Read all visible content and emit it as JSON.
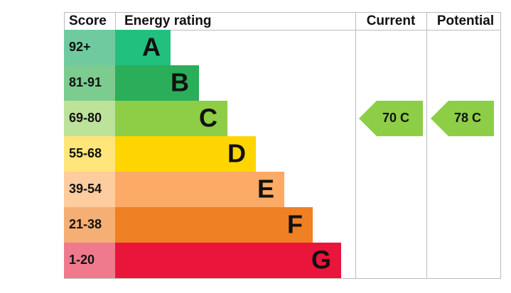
{
  "header": {
    "score": "Score",
    "rating": "Energy rating",
    "current": "Current",
    "potential": "Potential"
  },
  "bands": [
    {
      "score": "92+",
      "letter": "A"
    },
    {
      "score": "81-91",
      "letter": "B"
    },
    {
      "score": "69-80",
      "letter": "C"
    },
    {
      "score": "55-68",
      "letter": "D"
    },
    {
      "score": "39-54",
      "letter": "E"
    },
    {
      "score": "21-38",
      "letter": "F"
    },
    {
      "score": "1-20",
      "letter": "G"
    }
  ],
  "current": "70 C",
  "potential": "78 C"
}
